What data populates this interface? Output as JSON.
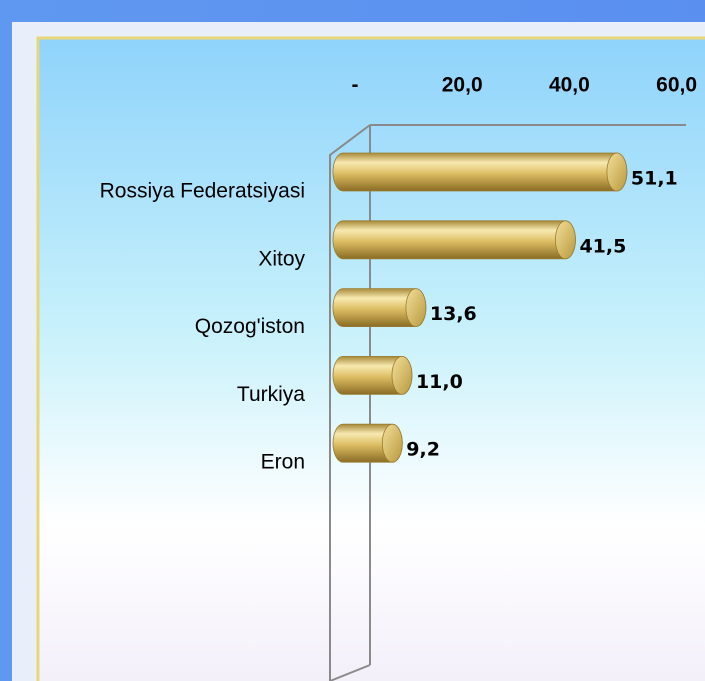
{
  "chart_data": {
    "type": "bar",
    "orientation": "horizontal",
    "categories": [
      "Rossiya Federatsiyasi",
      "Xitoy",
      "Qozog'iston",
      "Turkiya",
      "Eron"
    ],
    "values": [
      51.1,
      41.5,
      13.6,
      11.0,
      9.2
    ],
    "value_labels": [
      "51,1",
      "41,5",
      "13,6",
      "11,0",
      "9,2"
    ],
    "color": "#e3c66a",
    "xlim": [
      0,
      60
    ],
    "xticks": [
      {
        "value": 0,
        "label": "-"
      },
      {
        "value": 20,
        "label": "20,0"
      },
      {
        "value": 40,
        "label": "40,0"
      },
      {
        "value": 60,
        "label": "60,0"
      }
    ]
  }
}
